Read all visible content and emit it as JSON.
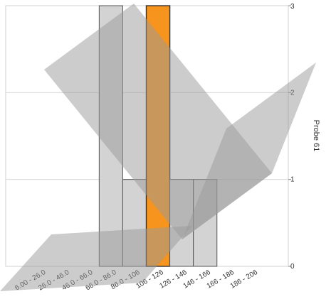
{
  "chart_data": {
    "type": "bar",
    "categories": [
      "6.00 - 26.0",
      "26.0 - 46.0",
      "46.0 - 66.0",
      "66.0 - 86.0",
      "86.0 - 106",
      "106 - 126",
      "126 - 146",
      "146 - 166",
      "166 - 186",
      "186 - 206"
    ],
    "series": [
      {
        "values": [
          0,
          0,
          0,
          3,
          1,
          3,
          1,
          1,
          0,
          0
        ]
      }
    ],
    "highlight_index": 5,
    "colors": {
      "bar": "#d3d3d3",
      "highlight": "#f7941d",
      "bar_stroke": "#555555",
      "grid": "#d9d9d9"
    },
    "ylabel": "Probe 61",
    "y_axis_position": "right",
    "ylim": [
      0,
      3
    ],
    "yticks": [
      "0",
      "1",
      "2",
      "3"
    ],
    "grid": true,
    "watermark": "check-mark-shape"
  }
}
